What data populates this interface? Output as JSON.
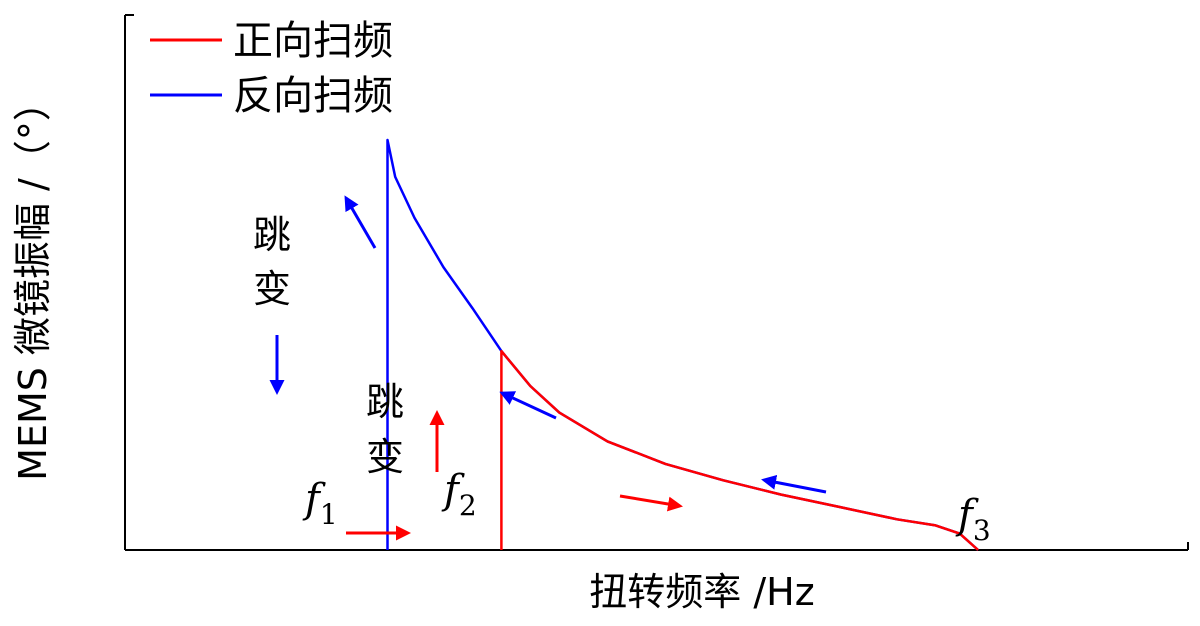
{
  "chart_data": {
    "type": "line",
    "xlabel": "扭转频率 /Hz",
    "ylabel": "MEMS 微镜振幅 /（°）",
    "legend": {
      "placement": "top-left",
      "entries": [
        {
          "name": "正向扫频",
          "color": "#ff0000"
        },
        {
          "name": "反向扫频",
          "color": "#0000ff"
        }
      ]
    },
    "xlim": [
      0,
      100
    ],
    "ylim": [
      0,
      100
    ],
    "grid": false,
    "series": [
      {
        "name": "正向扫频",
        "color": "#ff0000",
        "x": [
          39,
          39,
          42,
          45,
          50,
          56,
          62,
          68,
          74,
          80,
          84,
          86.5,
          88.4
        ],
        "y": [
          0,
          48.5,
          40,
          33.5,
          26.5,
          21,
          17,
          13.5,
          10.5,
          7.5,
          6,
          4,
          0
        ]
      },
      {
        "name": "反向扫频",
        "color": "#0000ff",
        "x": [
          88.4,
          86.5,
          84,
          80,
          74,
          68,
          62,
          56,
          50,
          45,
          42,
          39,
          36,
          33,
          30,
          28,
          27.2,
          27.2
        ],
        "y": [
          0,
          4,
          6,
          7.5,
          10.5,
          13.5,
          17,
          21,
          26.5,
          33.5,
          40,
          48.5,
          59,
          69,
          81,
          91,
          100,
          0
        ]
      }
    ],
    "annotations": {
      "jump_label_1": "跳\n变",
      "jump_label_2": "跳\n变",
      "f_symbol": "f",
      "f1_sub": "1",
      "f2_sub": "2",
      "f3_sub": "3",
      "markers": [
        {
          "name": "f1",
          "x": 27.2
        },
        {
          "name": "f2",
          "x": 39
        },
        {
          "name": "f3",
          "x": 88.4
        }
      ]
    }
  }
}
